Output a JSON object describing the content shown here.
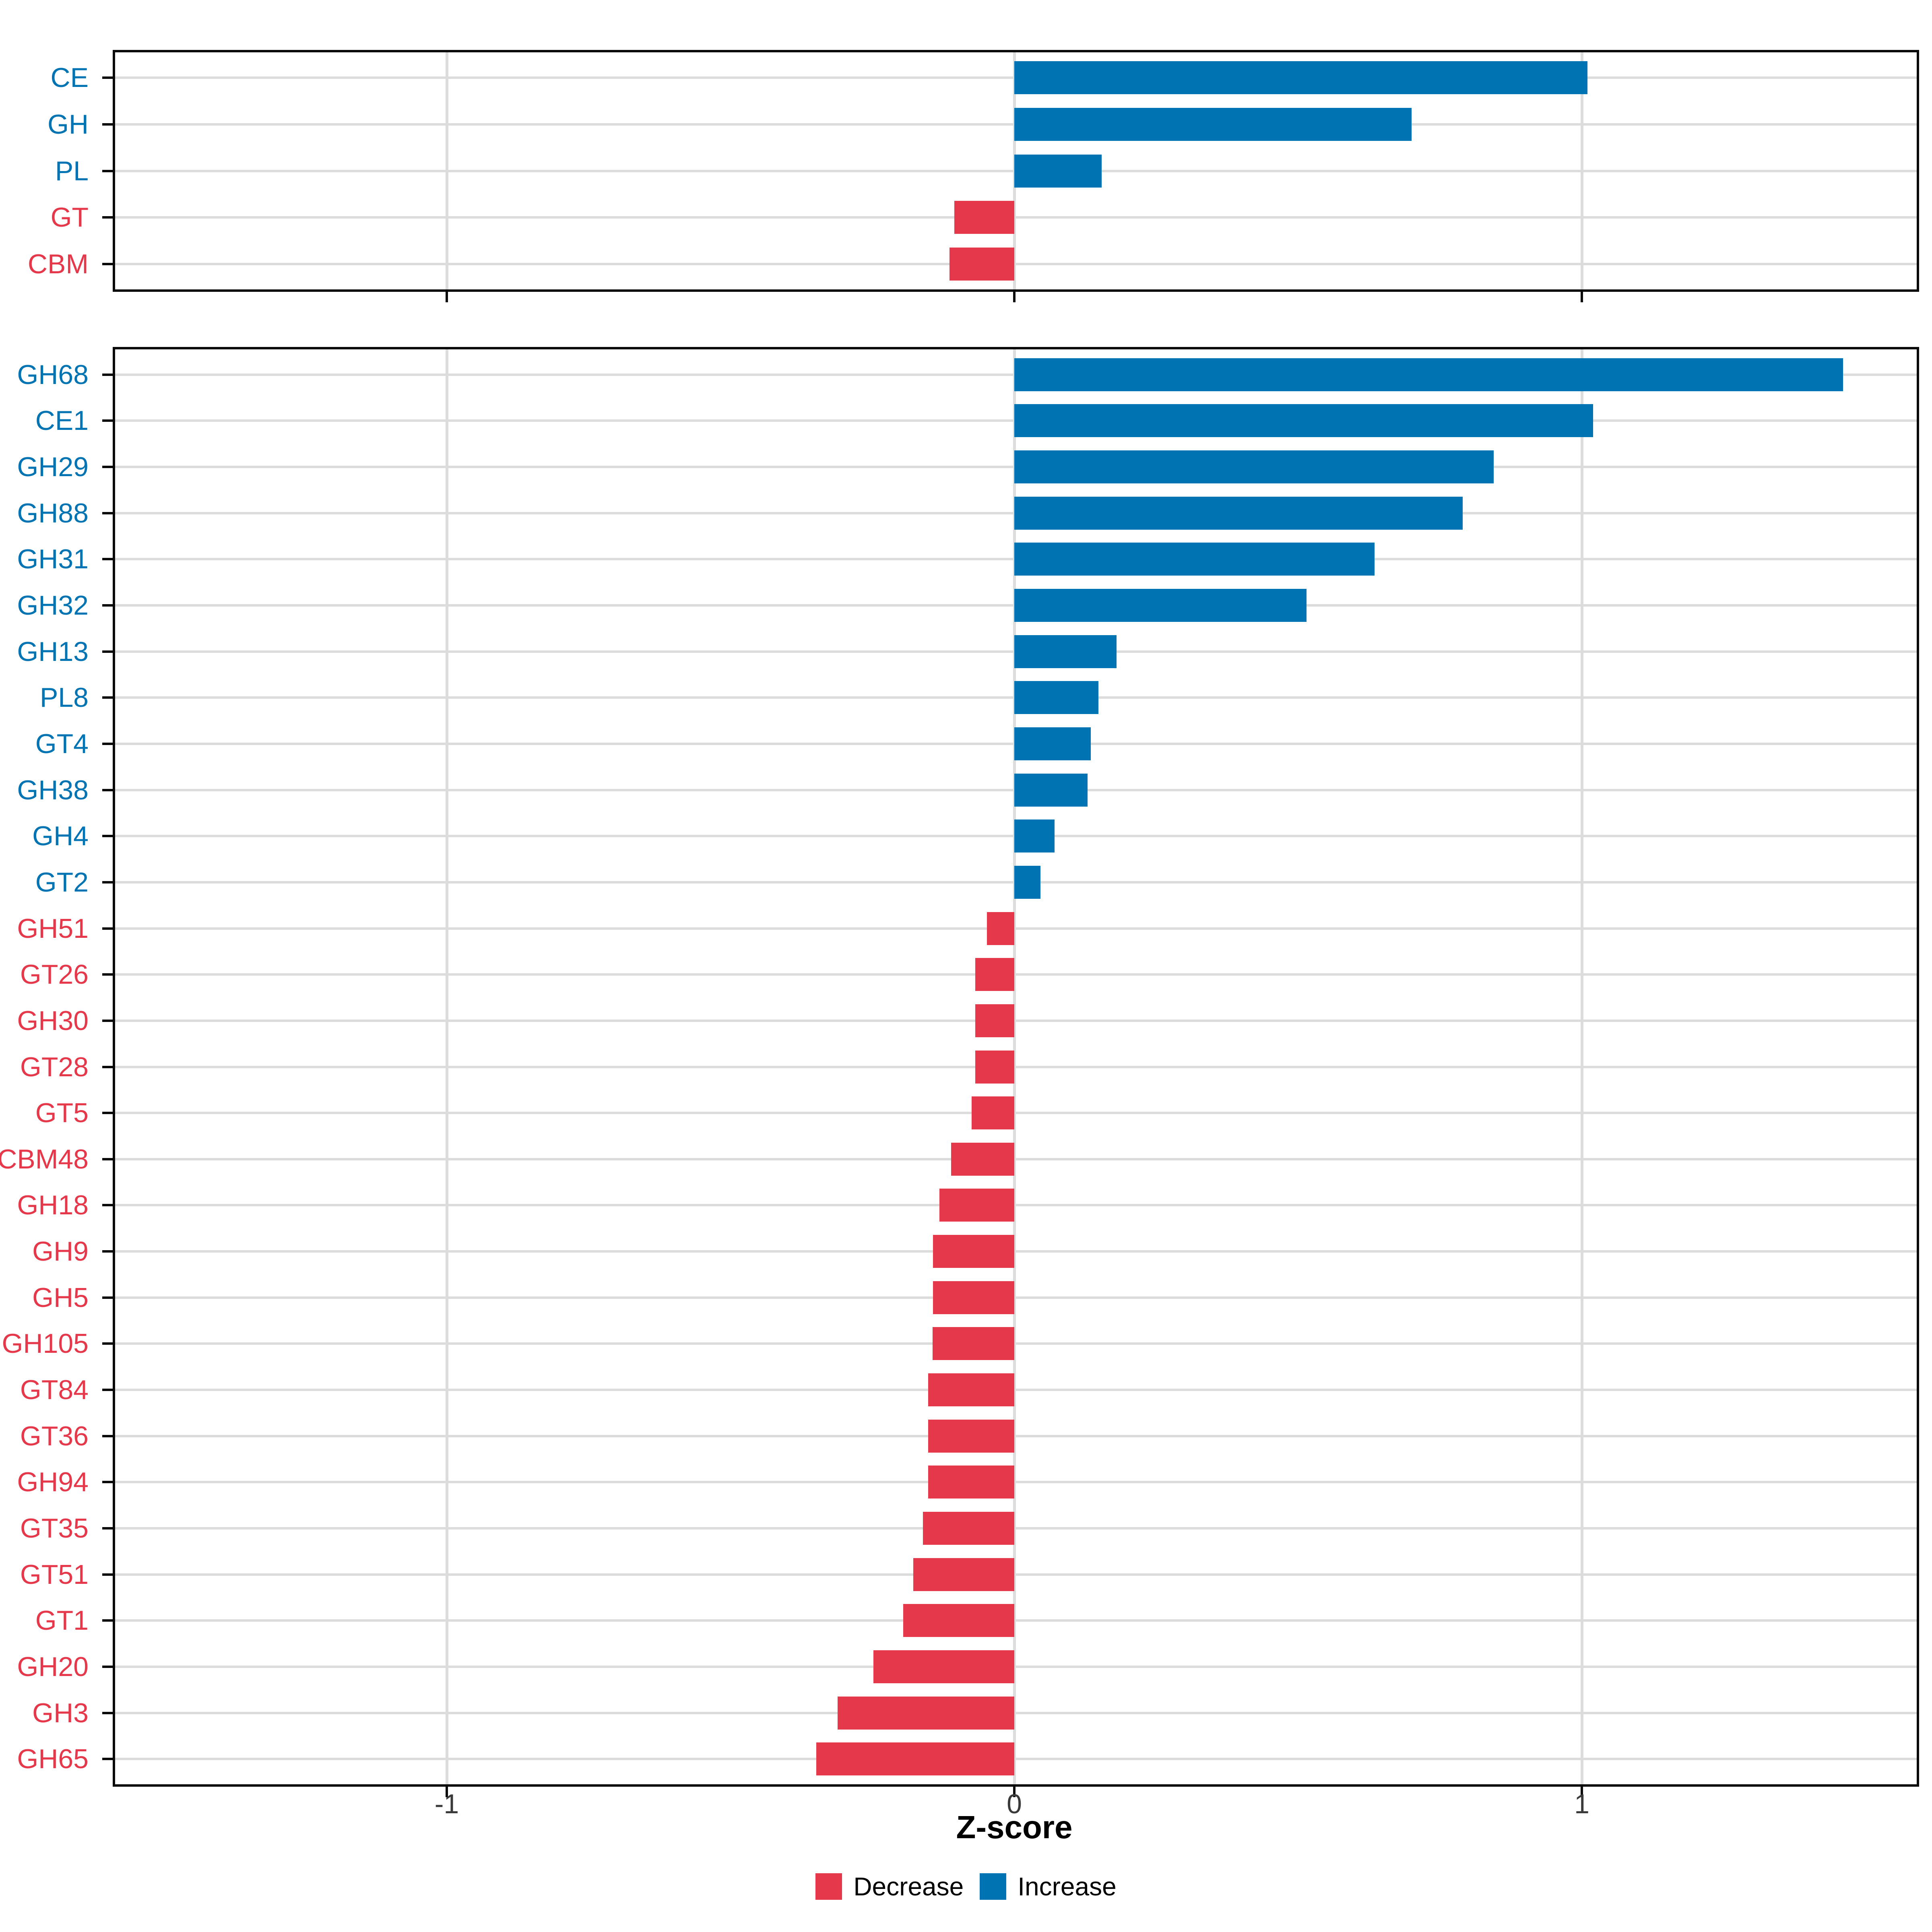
{
  "chart": {
    "xlabel": "Z-score",
    "x_ticks": [
      {
        "value": -1,
        "label": "-1"
      },
      {
        "value": 0,
        "label": "0"
      },
      {
        "value": 1,
        "label": "1"
      }
    ],
    "xlim": [
      -1.59,
      1.6
    ],
    "grid": true,
    "gridlines_x": [
      -1,
      0,
      1
    ],
    "legend": [
      {
        "label": "Decrease",
        "color_key": "decrease"
      },
      {
        "label": "Increase",
        "color_key": "increase"
      }
    ],
    "colors": {
      "increase": "#0074B3",
      "decrease": "#E5384A",
      "gridline": "#DCDCDC",
      "axis": "#0A0A0A",
      "x_tick_label": "#3A3A3A"
    }
  },
  "chart_data": [
    {
      "type": "bar",
      "orientation": "horizontal",
      "panel": "top",
      "title": "",
      "categories": [
        "CE",
        "GH",
        "PL",
        "GT",
        "CBM"
      ],
      "values": [
        1.01,
        0.7,
        0.154,
        -0.106,
        -0.114
      ],
      "series_label_by_sign": {
        "positive": "Increase",
        "negative": "Decrease"
      }
    },
    {
      "type": "bar",
      "orientation": "horizontal",
      "panel": "bottom",
      "title": "",
      "categories": [
        "GH68",
        "CE1",
        "GH29",
        "GH88",
        "GH31",
        "GH32",
        "GH13",
        "PL8",
        "GT4",
        "GH38",
        "GH4",
        "GT2",
        "GH51",
        "GT26",
        "GH30",
        "GT28",
        "GT5",
        "CBM48",
        "GH18",
        "GH9",
        "GH5",
        "GH105",
        "GT84",
        "GT36",
        "GH94",
        "GT35",
        "GT51",
        "GT1",
        "GH20",
        "GH3",
        "GH65"
      ],
      "values": [
        1.46,
        1.02,
        0.845,
        0.79,
        0.635,
        0.515,
        0.18,
        0.148,
        0.135,
        0.129,
        0.071,
        0.046,
        -0.048,
        -0.069,
        -0.069,
        -0.069,
        -0.075,
        -0.111,
        -0.132,
        -0.143,
        -0.143,
        -0.144,
        -0.152,
        -0.152,
        -0.152,
        -0.161,
        -0.178,
        -0.196,
        -0.248,
        -0.311,
        -0.349
      ],
      "series_label_by_sign": {
        "positive": "Increase",
        "negative": "Decrease"
      }
    }
  ]
}
